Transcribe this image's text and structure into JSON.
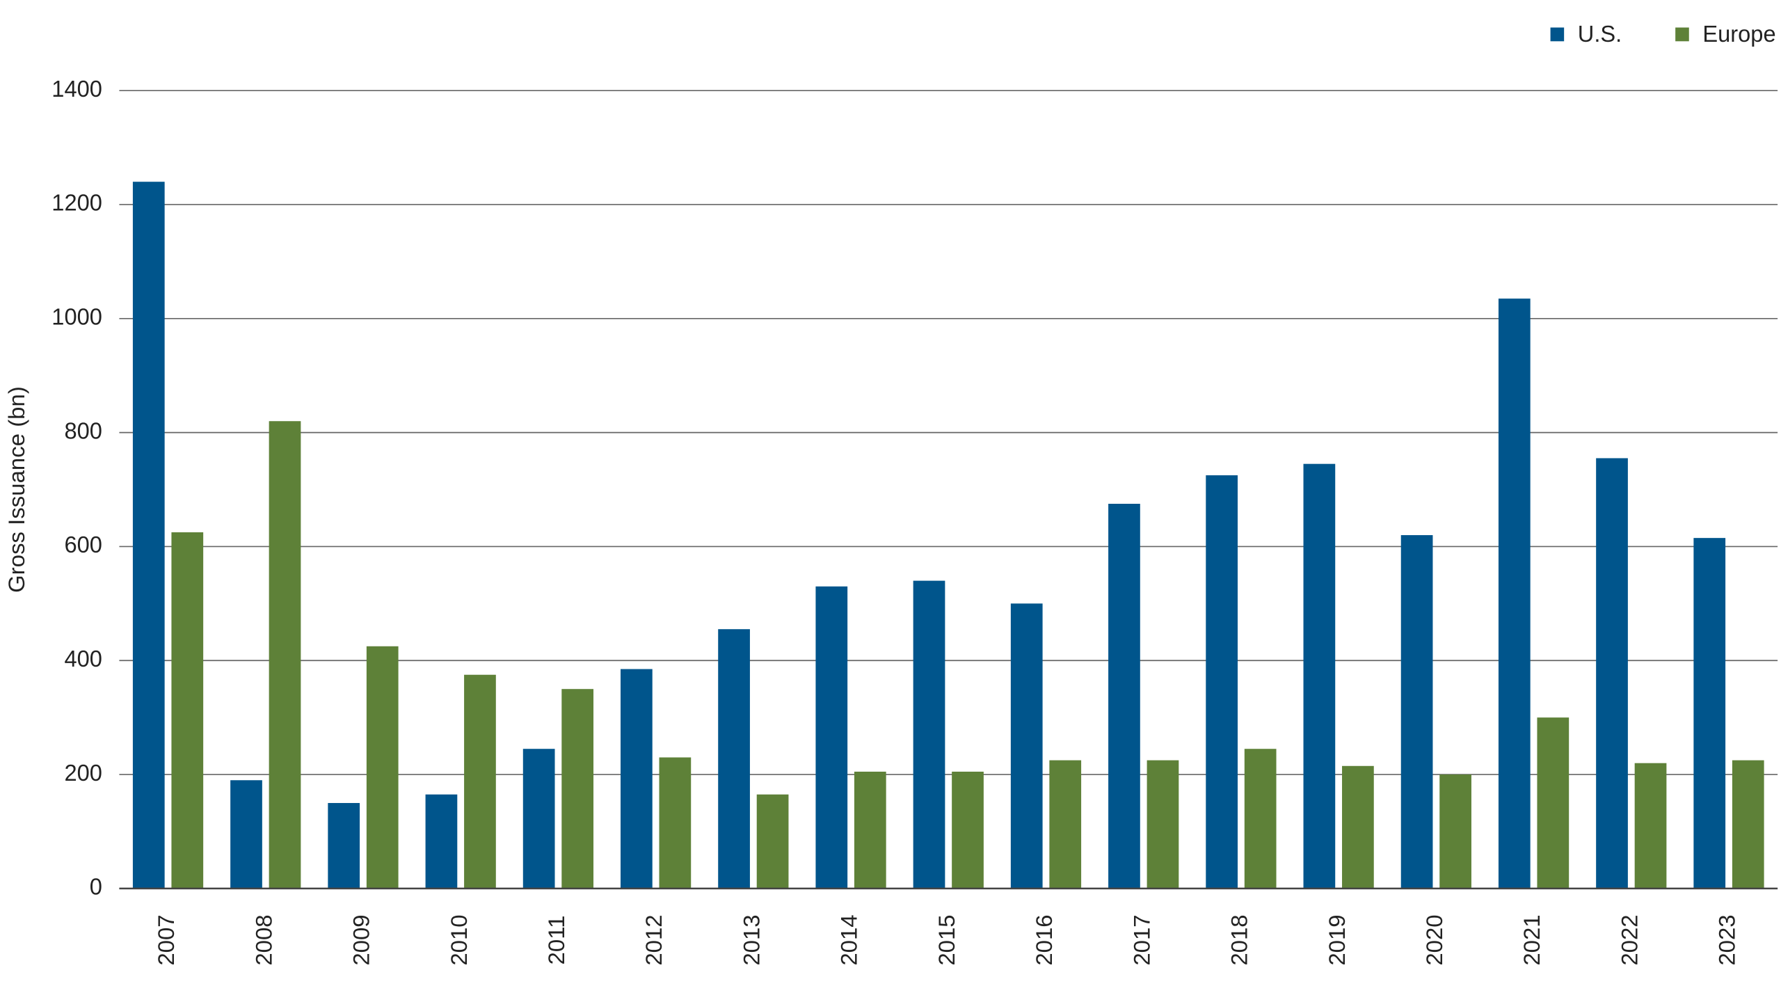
{
  "chart_data": {
    "type": "bar",
    "y_label": "Gross Issuance (bn)",
    "categories": [
      "2007",
      "2008",
      "2009",
      "2010",
      "2011",
      "2012",
      "2013",
      "2014",
      "2015",
      "2016",
      "2017",
      "2018",
      "2019",
      "2020",
      "2021",
      "2022",
      "2023"
    ],
    "series": [
      {
        "name": "U.S.",
        "color": "#00558c",
        "values": [
          1240,
          190,
          150,
          165,
          245,
          385,
          455,
          530,
          540,
          500,
          675,
          725,
          745,
          620,
          1035,
          755,
          615
        ]
      },
      {
        "name": "Europe",
        "color": "#5e8138",
        "values": [
          625,
          820,
          425,
          375,
          350,
          230,
          165,
          205,
          205,
          225,
          225,
          245,
          215,
          200,
          300,
          220,
          225
        ]
      }
    ],
    "ylim": [
      0,
      1400
    ],
    "yticks": [
      0,
      200,
      400,
      600,
      800,
      1000,
      1200,
      1400
    ],
    "grid": true,
    "legend": "top-right"
  }
}
